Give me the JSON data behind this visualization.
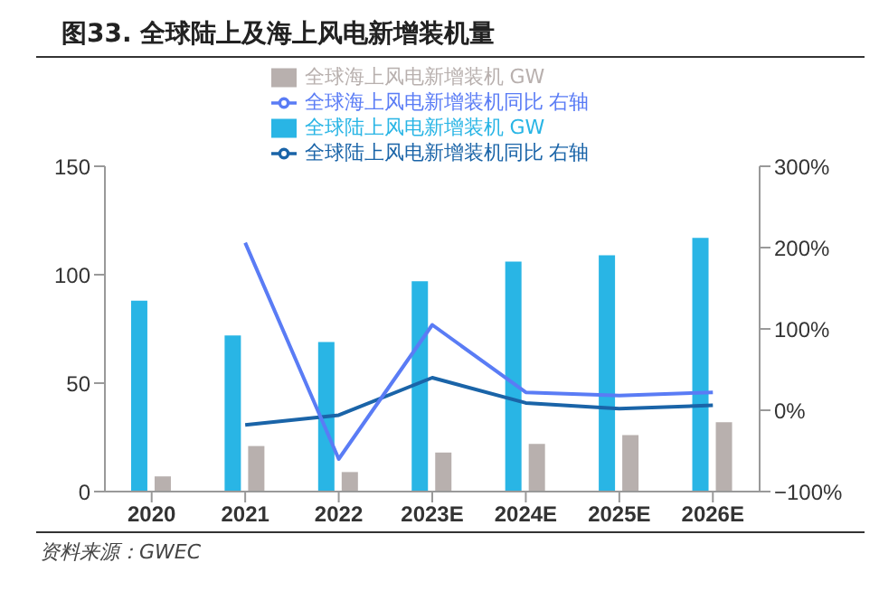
{
  "chart_data": {
    "type": "bar",
    "title": "图33. 全球陆上及海上风电新增装机量",
    "annotations": [
      "资料来源：GWEC"
    ],
    "categories": [
      "2020",
      "2021",
      "2022",
      "2023E",
      "2024E",
      "2025E",
      "2026E"
    ],
    "series": [
      {
        "name": "全球陆上风电新增装机 GW",
        "color": "#29b5e5",
        "values": [
          88,
          72,
          69,
          97,
          106,
          109,
          117
        ]
      },
      {
        "name": "全球海上风电新增装机 GW",
        "color": "#b8b0ae",
        "values": [
          7,
          21,
          9,
          18,
          22,
          26,
          32
        ]
      },
      {
        "name": "全球陆上风电新增装机同比 右轴",
        "type": "line",
        "axis": "y2",
        "color": "#1a64a8",
        "values": [
          null,
          -18,
          -6,
          40,
          9,
          2,
          6
        ]
      },
      {
        "name": "全球海上风电新增装机同比 右轴",
        "type": "line",
        "axis": "y2",
        "color": "#5a7cf5",
        "values": [
          null,
          206,
          -60,
          105,
          22,
          18,
          22
        ]
      }
    ],
    "ylim": [
      0,
      150
    ],
    "yticks": [
      0,
      50,
      100,
      150
    ],
    "y2lim": [
      -100,
      300
    ],
    "y2ticks": [
      {
        "value": -100,
        "label": "−100%"
      },
      {
        "value": 0,
        "label": "0%"
      },
      {
        "value": 100,
        "label": "100%"
      },
      {
        "value": 200,
        "label": "200%"
      },
      {
        "value": 300,
        "label": "300%"
      }
    ],
    "legend": "top",
    "grid": false,
    "marker": "none"
  }
}
